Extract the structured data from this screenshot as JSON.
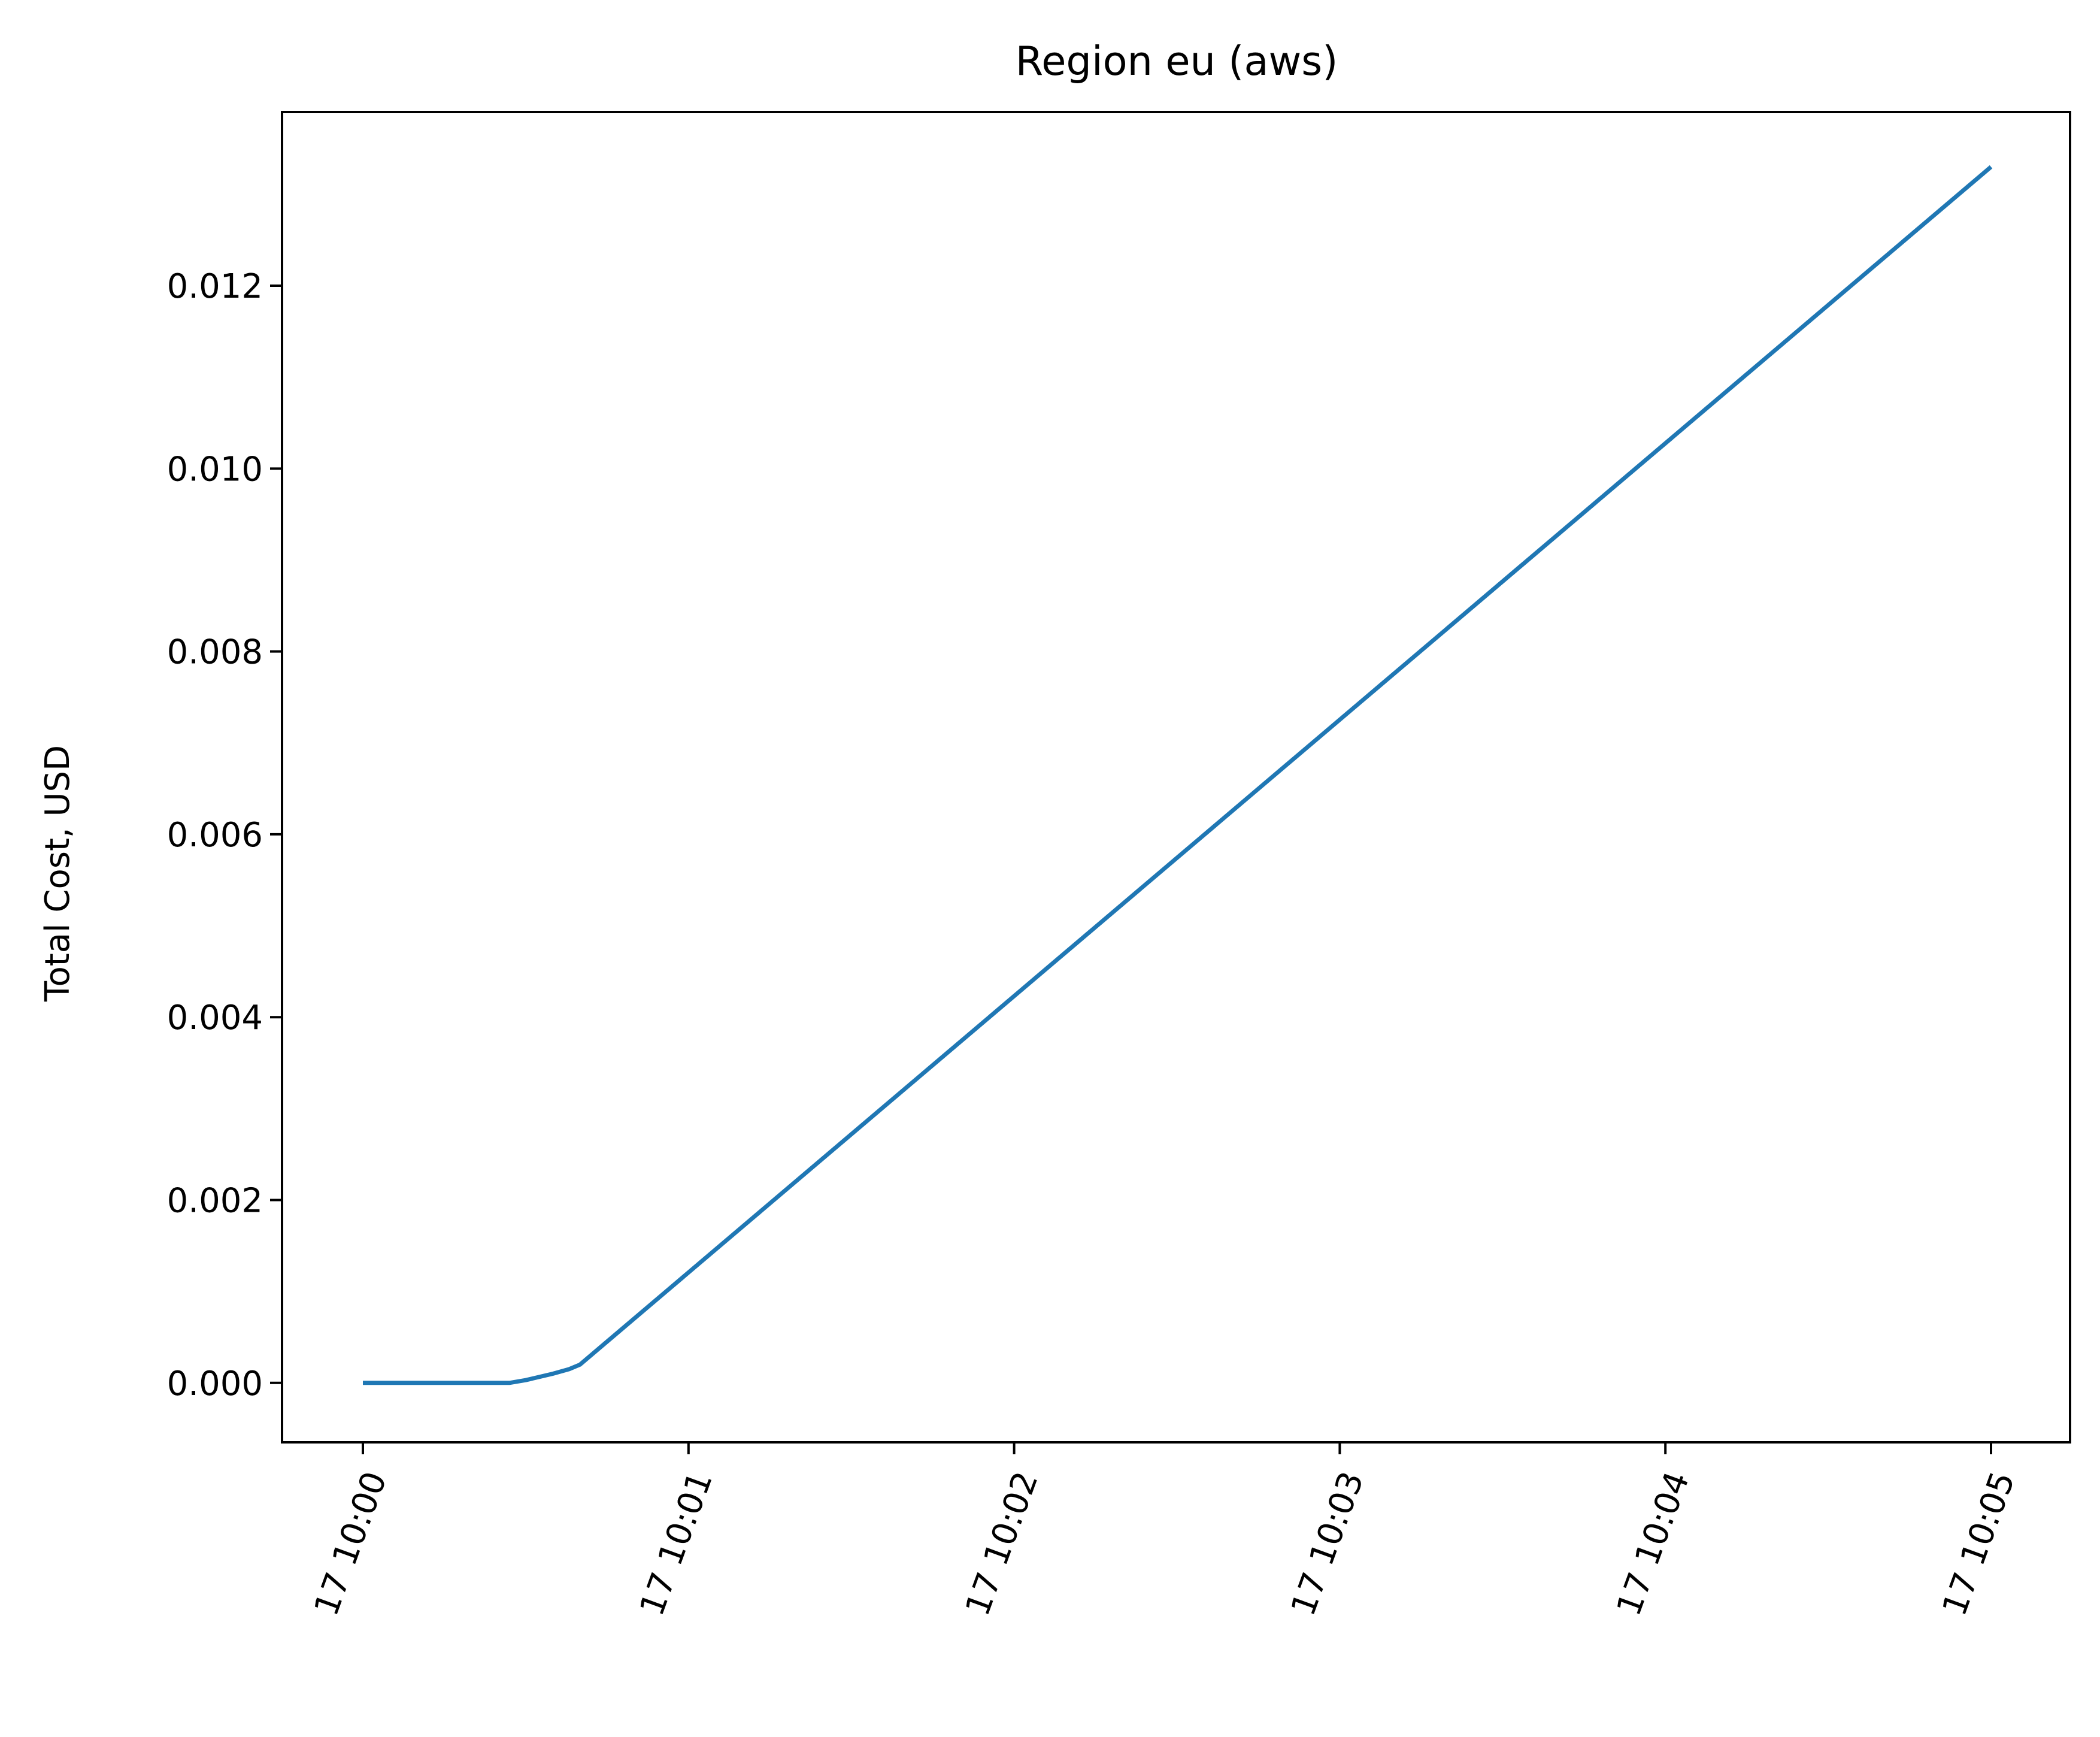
{
  "chart_data": {
    "type": "line",
    "title": "Region eu (aws)",
    "xlabel": "",
    "ylabel": "Total Cost, USD",
    "ylim": [
      -0.00065,
      0.0139
    ],
    "xlim": [
      "10:00:00",
      "10:05:00"
    ],
    "grid": false,
    "legend": "none",
    "series": [
      {
        "color": "#1f77b4",
        "x": [
          "10:00:00",
          "10:00:27",
          "10:00:30",
          "10:00:35",
          "10:00:38",
          "10:00:40",
          "10:05:00"
        ],
        "y": [
          0.0,
          0.0,
          3e-05,
          0.0001,
          0.00015,
          0.0002,
          0.0133
        ]
      }
    ],
    "x_ticks": [
      {
        "t": "10:00:00",
        "label": "17 10:00"
      },
      {
        "t": "10:01:00",
        "label": "17 10:01"
      },
      {
        "t": "10:02:00",
        "label": "17 10:02"
      },
      {
        "t": "10:03:00",
        "label": "17 10:03"
      },
      {
        "t": "10:04:00",
        "label": "17 10:04"
      },
      {
        "t": "10:05:00",
        "label": "17 10:05"
      }
    ],
    "y_ticks": [
      0.0,
      0.002,
      0.004,
      0.006,
      0.008,
      0.01,
      0.012
    ],
    "y_tick_labels": [
      "0.000",
      "0.002",
      "0.004",
      "0.006",
      "0.008",
      "0.010",
      "0.012"
    ]
  }
}
